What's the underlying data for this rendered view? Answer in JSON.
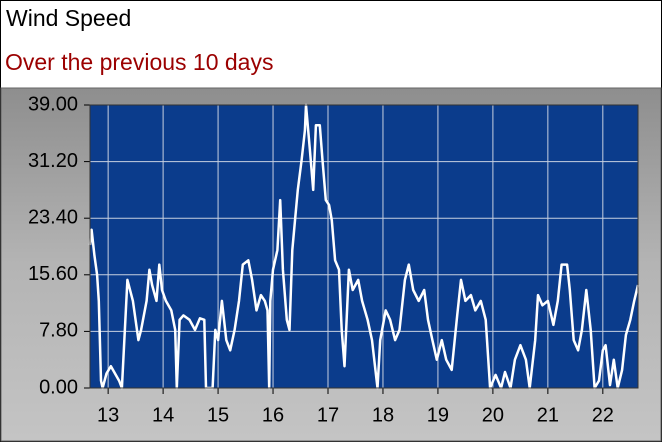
{
  "chart_data": {
    "type": "line",
    "title": "Wind Speed",
    "subtitle": "Over the previous 10 days",
    "xlim": [
      12.67,
      22.64
    ],
    "xticks": [
      13,
      14,
      15,
      16,
      17,
      18,
      19,
      20,
      21,
      22
    ],
    "ylim": [
      0,
      39
    ],
    "yticks": [
      {
        "value": 0,
        "label": "0.00"
      },
      {
        "value": 7.8,
        "label": "7.80"
      },
      {
        "value": 15.6,
        "label": "15.60"
      },
      {
        "value": 23.4,
        "label": "23.40"
      },
      {
        "value": 31.2,
        "label": "31.20"
      },
      {
        "value": 39,
        "label": "39.00"
      }
    ],
    "grid": true,
    "background": "#0b3c8c",
    "color": "#ffffff",
    "x": [
      12.67,
      12.7,
      12.75,
      12.8,
      12.83,
      12.87,
      12.9,
      12.97,
      13.05,
      13.2,
      13.25,
      13.35,
      13.45,
      13.55,
      13.6,
      13.7,
      13.75,
      13.8,
      13.88,
      13.93,
      13.98,
      14.05,
      14.15,
      14.22,
      14.25,
      14.3,
      14.37,
      14.48,
      14.58,
      14.67,
      14.75,
      14.78,
      14.9,
      14.95,
      15.0,
      15.07,
      15.15,
      15.22,
      15.3,
      15.38,
      15.45,
      15.55,
      15.62,
      15.7,
      15.78,
      15.85,
      15.9,
      15.93,
      15.95,
      16.0,
      16.08,
      16.13,
      16.18,
      16.25,
      16.3,
      16.35,
      16.4,
      16.45,
      16.52,
      16.58,
      16.6,
      16.67,
      16.73,
      16.78,
      16.85,
      16.9,
      16.96,
      17.02,
      17.07,
      17.13,
      17.2,
      17.25,
      17.3,
      17.38,
      17.45,
      17.55,
      17.62,
      17.72,
      17.8,
      17.9,
      17.95,
      18.05,
      18.13,
      18.22,
      18.3,
      18.4,
      18.47,
      18.55,
      18.65,
      18.75,
      18.82,
      18.9,
      18.98,
      19.07,
      19.15,
      19.25,
      19.35,
      19.42,
      19.5,
      19.6,
      19.68,
      19.78,
      19.87,
      19.95,
      20.05,
      20.15,
      20.22,
      20.32,
      20.4,
      20.5,
      20.6,
      20.67,
      20.77,
      20.82,
      20.9,
      21.0,
      21.1,
      21.18,
      21.25,
      21.35,
      21.4,
      21.47,
      21.55,
      21.62,
      21.7,
      21.78,
      21.85,
      21.93,
      22.0,
      22.05,
      22.13,
      22.2,
      22.27,
      22.35,
      22.42,
      22.5,
      22.57,
      22.64
    ],
    "values": [
      19.7,
      21.8,
      18.3,
      15.6,
      12,
      1,
      0,
      2,
      3,
      1,
      0,
      14.9,
      12,
      6.6,
      8,
      12,
      16.3,
      14.2,
      12,
      17,
      13.5,
      12,
      10.7,
      8,
      0,
      9.4,
      10,
      9.4,
      8,
      9.6,
      9.4,
      0,
      0,
      8,
      6.6,
      12,
      6.6,
      5.2,
      8,
      12,
      17,
      17.6,
      14.9,
      10.7,
      12.8,
      12,
      10.7,
      0,
      12,
      16.3,
      19,
      25.9,
      16.3,
      9.4,
      8,
      19,
      23.1,
      27.3,
      31.4,
      35.5,
      39,
      32.8,
      27.3,
      36.2,
      36.2,
      31.4,
      25.9,
      25.2,
      23.1,
      17.6,
      16.3,
      8,
      3,
      16.3,
      13.5,
      14.9,
      12,
      9.4,
      6.6,
      0,
      6.6,
      10.7,
      9.4,
      6.6,
      8,
      14.9,
      17,
      13.5,
      12,
      13.5,
      9.4,
      6.6,
      3.9,
      6.6,
      3.9,
      2.5,
      10,
      14.9,
      12,
      12.8,
      10.7,
      12,
      9.4,
      0,
      1.8,
      0,
      2.2,
      0,
      3.9,
      5.9,
      3.9,
      0,
      6.6,
      12.8,
      11.4,
      12,
      8.7,
      12,
      17,
      17,
      13.5,
      6.6,
      5.2,
      8,
      13.5,
      8,
      0,
      1,
      5.2,
      5.9,
      0.4,
      3.9,
      0,
      2.5,
      7.3,
      9.4,
      12,
      14.2
    ]
  }
}
